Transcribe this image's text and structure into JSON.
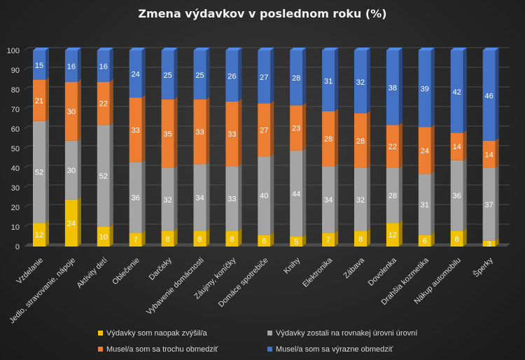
{
  "chart_data": {
    "type": "bar",
    "stacked": true,
    "title": "Zmena výdavkov v poslednom roku (%)",
    "xlabel": "",
    "ylabel": "",
    "ylim": [
      0,
      100
    ],
    "yticks": [
      0,
      10,
      20,
      30,
      40,
      50,
      60,
      70,
      80,
      90,
      100
    ],
    "grid": true,
    "legend_position": "bottom",
    "categories": [
      "Vzdelanie",
      "Jedlo, stravovanie, nápoje",
      "Aktivity detí",
      "Oblečenie",
      "Darčeky",
      "Vybavenie domácnosti",
      "Záujmy, koníčky",
      "Domáce spotrebiče",
      "Knihy",
      "Elektronika",
      "Zábava",
      "Dovolenka",
      "Drahšia kozmetika",
      "Nákup automobilu",
      "Šperky"
    ],
    "series": [
      {
        "name": "Výdavky som naopak zvýšil/a",
        "color": "#f2c200",
        "values": [
          12,
          24,
          10,
          7,
          8,
          8,
          8,
          6,
          5,
          7,
          8,
          12,
          6,
          8,
          3
        ]
      },
      {
        "name": "Výdavky zostali na rovnakej úrovni úrovní",
        "color": "#a5a5a5",
        "values": [
          52,
          30,
          52,
          36,
          32,
          34,
          33,
          40,
          44,
          34,
          32,
          28,
          31,
          36,
          37
        ]
      },
      {
        "name": "Musel/a som sa trochu obmedziť",
        "color": "#ed7d31",
        "values": [
          21,
          30,
          22,
          33,
          35,
          33,
          33,
          27,
          23,
          28,
          28,
          22,
          24,
          14,
          14
        ]
      },
      {
        "name": "Musel/a som sa výrazne obmedziť",
        "color": "#4472c4",
        "values": [
          15,
          16,
          16,
          24,
          25,
          25,
          26,
          27,
          28,
          31,
          32,
          38,
          39,
          42,
          46
        ]
      }
    ]
  }
}
